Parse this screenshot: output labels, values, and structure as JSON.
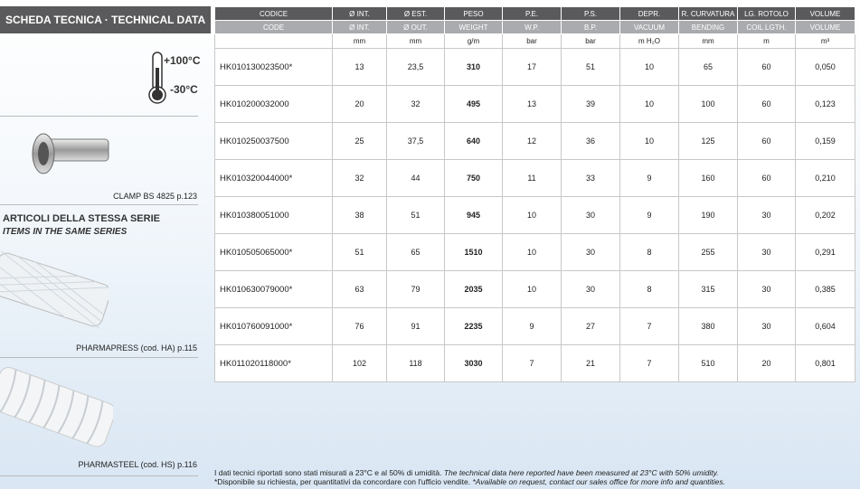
{
  "header": {
    "title": "SCHEDA TECNICA · TECHNICAL DATA"
  },
  "left": {
    "temp_high": "+100°C",
    "temp_low": "-30°C",
    "clamp_caption": "CLAMP BS 4825 p.123",
    "series_title_it": "ARTICOLI DELLA STESSA SERIE",
    "series_title_en": "ITEMS IN THE SAME SERIES",
    "products": [
      {
        "caption": "PHARMAPRESS (cod. HA) p.115"
      },
      {
        "caption": "PHARMASTEEL (cod. HS) p.116"
      }
    ]
  },
  "table": {
    "header_it": [
      "CODICE",
      "Ø INT.",
      "Ø EST.",
      "PESO",
      "P.E.",
      "P.S.",
      "DEPR.",
      "R. CURVATURA",
      "LG. ROTOLO",
      "VOLUME"
    ],
    "header_en": [
      "CODE",
      "Ø INT.",
      "Ø OUT.",
      "WEIGHT",
      "W.P.",
      "B.P.",
      "VACUUM",
      "BENDING",
      "COIL LGTH.",
      "VOLUME"
    ],
    "units": [
      "mm",
      "mm",
      "g/m",
      "bar",
      "bar",
      "m H₂O",
      "mm",
      "m",
      "m³"
    ],
    "rows": [
      [
        "HK010130023500*",
        "13",
        "23,5",
        "310",
        "17",
        "51",
        "10",
        "65",
        "60",
        "0,050"
      ],
      [
        "HK010200032000",
        "20",
        "32",
        "495",
        "13",
        "39",
        "10",
        "100",
        "60",
        "0,123"
      ],
      [
        "HK010250037500",
        "25",
        "37,5",
        "640",
        "12",
        "36",
        "10",
        "125",
        "60",
        "0,159"
      ],
      [
        "HK010320044000*",
        "32",
        "44",
        "750",
        "11",
        "33",
        "9",
        "160",
        "60",
        "0,210"
      ],
      [
        "HK010380051000",
        "38",
        "51",
        "945",
        "10",
        "30",
        "9",
        "190",
        "30",
        "0,202"
      ],
      [
        "HK010505065000*",
        "51",
        "65",
        "1510",
        "10",
        "30",
        "8",
        "255",
        "30",
        "0,291"
      ],
      [
        "HK010630079000*",
        "63",
        "79",
        "2035",
        "10",
        "30",
        "8",
        "315",
        "30",
        "0,385"
      ],
      [
        "HK010760091000*",
        "76",
        "91",
        "2235",
        "9",
        "27",
        "7",
        "380",
        "30",
        "0,604"
      ],
      [
        "HK011020118000*",
        "102",
        "118",
        "3030",
        "7",
        "21",
        "7",
        "510",
        "20",
        "0,801"
      ]
    ]
  },
  "footnotes": [
    {
      "it": "I dati tecnici riportati sono stati misurati a 23°C e al 50% di umidità.",
      "en": "The technical data here reported have been measured at 23°C with 50% umidity."
    },
    {
      "it": "*Disponibile su richiesta, per quantitativi da concordare con l'ufficio vendite.",
      "en": "*Available on request, contact our sales office for more info and quantities."
    }
  ]
}
